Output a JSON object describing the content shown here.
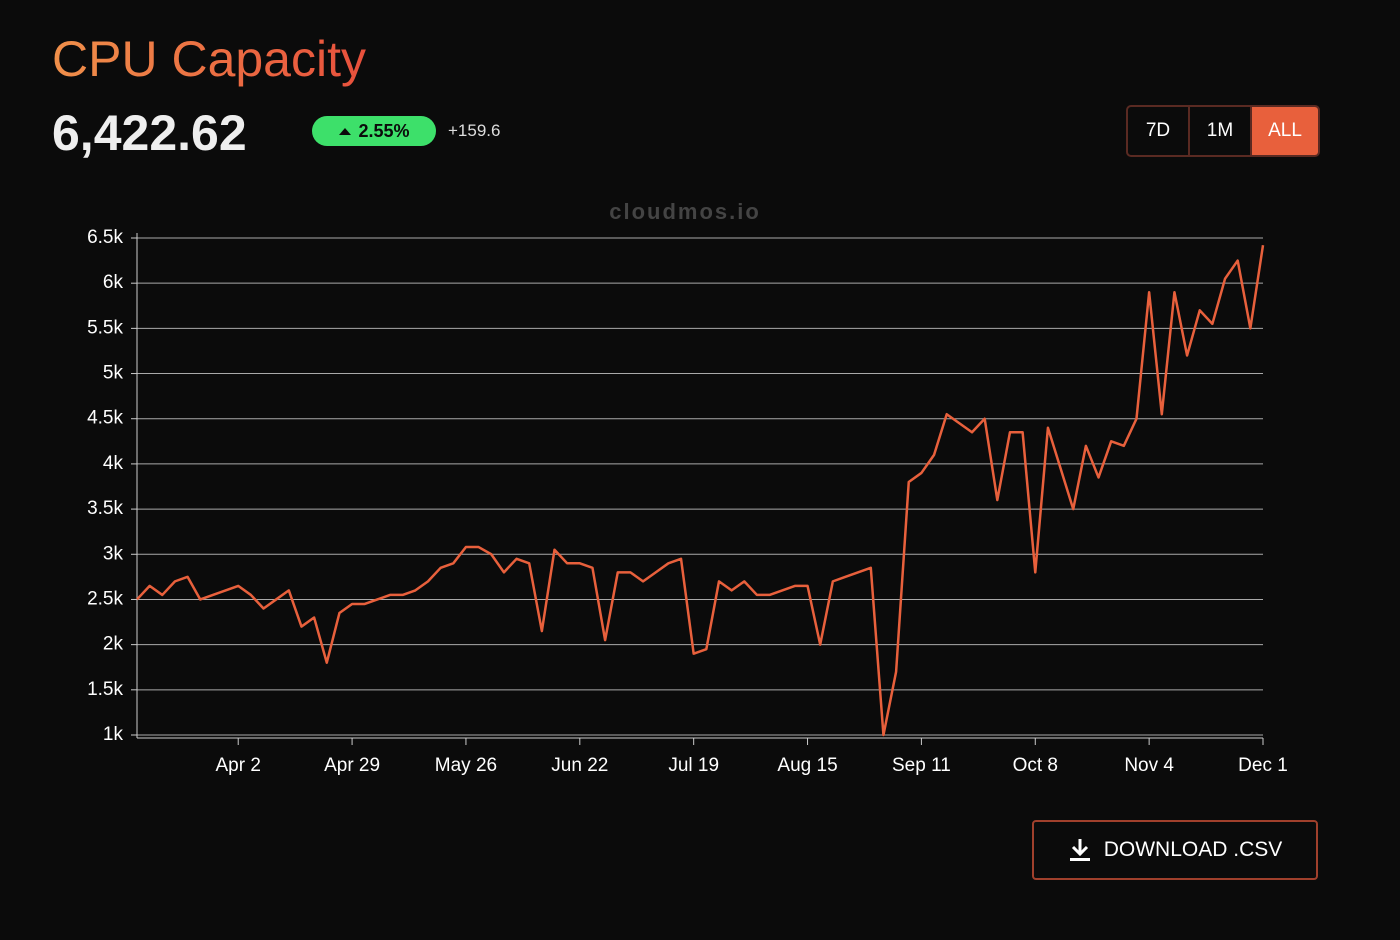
{
  "header": {
    "title": "CPU Capacity",
    "value": "6,422.62",
    "change_percent": "2.55%",
    "change_abs": "+159.6"
  },
  "range_buttons": [
    "7D",
    "1M",
    "ALL"
  ],
  "watermark": "cloudmos.io",
  "download_button": "DOWNLOAD .CSV",
  "chart_data": {
    "type": "line",
    "color": "#e8603c",
    "categories": [
      null,
      null,
      null,
      null,
      null,
      null,
      null,
      null,
      "Apr 2",
      null,
      null,
      null,
      null,
      null,
      null,
      null,
      null,
      "Apr 29",
      null,
      null,
      null,
      null,
      null,
      null,
      null,
      null,
      "May 26",
      null,
      null,
      null,
      null,
      null,
      null,
      null,
      null,
      "Jun 22",
      null,
      null,
      null,
      null,
      null,
      null,
      null,
      null,
      "Jul 19",
      null,
      null,
      null,
      null,
      null,
      null,
      null,
      null,
      "Aug 15",
      null,
      null,
      null,
      null,
      null,
      null,
      null,
      null,
      "Sep 11",
      null,
      null,
      null,
      null,
      null,
      null,
      null,
      null,
      "Oct 8",
      null,
      null,
      null,
      null,
      null,
      null,
      null,
      null,
      "Nov 4",
      null,
      null,
      null,
      null,
      null,
      null,
      null,
      null,
      "Dec 1"
    ],
    "values": [
      2500,
      2650,
      2550,
      2700,
      2750,
      2500,
      2550,
      2600,
      2650,
      2550,
      2400,
      2500,
      2600,
      2200,
      2300,
      1800,
      2350,
      2450,
      2450,
      2500,
      2550,
      2550,
      2600,
      2700,
      2850,
      2900,
      3080,
      3080,
      3000,
      2800,
      2950,
      2900,
      2150,
      3050,
      2900,
      2900,
      2850,
      2050,
      2800,
      2800,
      2700,
      2800,
      2900,
      2950,
      1900,
      1950,
      2700,
      2600,
      2700,
      2550,
      2550,
      2600,
      2650,
      2650,
      2000,
      2700,
      2750,
      2800,
      2850,
      1000,
      1700,
      3800,
      3900,
      4100,
      4550,
      4450,
      4350,
      4500,
      3600,
      4350,
      4350,
      2800,
      4400,
      3950,
      3500,
      4200,
      3850,
      4250,
      4200,
      4500,
      5900,
      4550,
      5900,
      5200,
      5700,
      5550,
      6050,
      6250,
      5500,
      6420
    ],
    "ylim": [
      1000,
      6500
    ],
    "yticks": [
      {
        "value": 1000,
        "label": "1k"
      },
      {
        "value": 1500,
        "label": "1.5k"
      },
      {
        "value": 2000,
        "label": "2k"
      },
      {
        "value": 2500,
        "label": "2.5k"
      },
      {
        "value": 3000,
        "label": "3k"
      },
      {
        "value": 3500,
        "label": "3.5k"
      },
      {
        "value": 4000,
        "label": "4k"
      },
      {
        "value": 4500,
        "label": "4.5k"
      },
      {
        "value": 5000,
        "label": "5k"
      },
      {
        "value": 5500,
        "label": "5.5k"
      },
      {
        "value": 6000,
        "label": "6k"
      },
      {
        "value": 6500,
        "label": "6.5k"
      }
    ],
    "grid": true
  }
}
